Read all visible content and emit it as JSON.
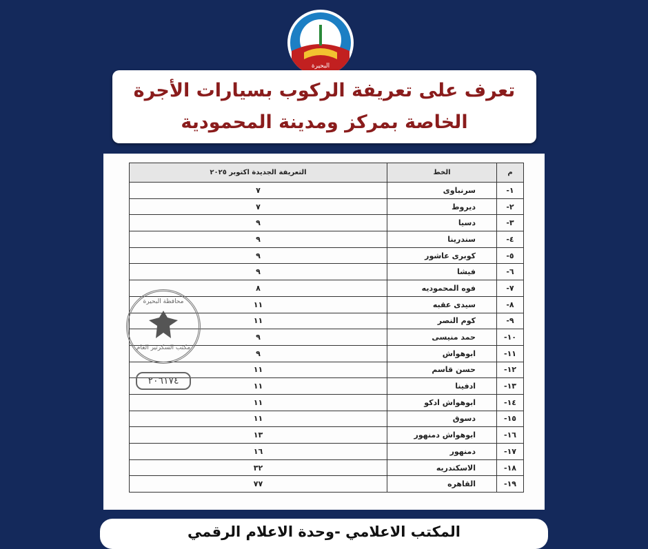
{
  "logo": {
    "label": "البحيرة"
  },
  "header": {
    "title_line1": "تعرف على تعريفة الركوب بسيارات الأجرة",
    "title_line2": "الخاصة بمركز ومدينة المحمودية"
  },
  "table": {
    "columns": [
      "م",
      "الخط",
      "التعريفة الجديدة اكتوبر ٢٠٢٥"
    ],
    "rows": [
      [
        "-١",
        "سرنباوى",
        "٧"
      ],
      [
        "-٢",
        "ديروط",
        "٧"
      ],
      [
        "-٣",
        "دسيا",
        "٩"
      ],
      [
        "-٤",
        "سندرينا",
        "٩"
      ],
      [
        "-٥",
        "كوبرى عاشور",
        "٩"
      ],
      [
        "-٦",
        "فيشا",
        "٩"
      ],
      [
        "-٧",
        "فوه المحموديه",
        "٨"
      ],
      [
        "-٨",
        "سيدى عقبه",
        "١١"
      ],
      [
        "-٩",
        "كوم النصر",
        "١١"
      ],
      [
        "-١٠",
        "حمد منيسى",
        "٩"
      ],
      [
        "-١١",
        "ابوهواش",
        "٩"
      ],
      [
        "-١٢",
        "حسن قاسم",
        "١١"
      ],
      [
        "-١٣",
        "ادفينا",
        "١١"
      ],
      [
        "-١٤",
        "ابوهواش ادكو",
        "١١"
      ],
      [
        "-١٥",
        "دسوق",
        "١١"
      ],
      [
        "-١٦",
        "ابوهواش دمنهور",
        "١٣"
      ],
      [
        "-١٧",
        "دمنهور",
        "١٦"
      ],
      [
        "-١٨",
        "الاسكندريه",
        "٣٢"
      ],
      [
        "-١٩",
        "القاهره",
        "٧٧"
      ]
    ]
  },
  "stamp": {
    "top": "محافظة البحيرة",
    "bottom": "مكتب السكرتير العام",
    "number": "٢٠٦١٧٤"
  },
  "footer": {
    "text": "المكتب الاعلامي -وحدة الاعلام الرقمي"
  }
}
